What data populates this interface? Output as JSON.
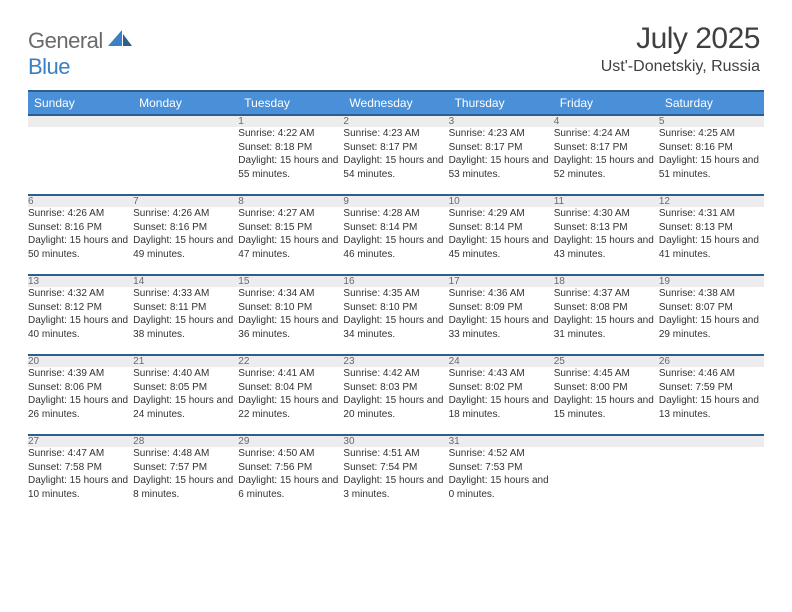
{
  "logo": {
    "word1": "General",
    "word2": "Blue"
  },
  "title": "July 2025",
  "location": "Ust'-Donetskiy, Russia",
  "colors": {
    "header_bg": "#4a90d9",
    "header_border": "#2c5f8d",
    "daynum_bg": "#ededed",
    "text": "#333333",
    "logo_gray": "#6a6a6a",
    "logo_blue": "#3b7fc4"
  },
  "day_headers": [
    "Sunday",
    "Monday",
    "Tuesday",
    "Wednesday",
    "Thursday",
    "Friday",
    "Saturday"
  ],
  "weeks": [
    [
      null,
      null,
      {
        "n": "1",
        "sunrise": "4:22 AM",
        "sunset": "8:18 PM",
        "daylight": "15 hours and 55 minutes."
      },
      {
        "n": "2",
        "sunrise": "4:23 AM",
        "sunset": "8:17 PM",
        "daylight": "15 hours and 54 minutes."
      },
      {
        "n": "3",
        "sunrise": "4:23 AM",
        "sunset": "8:17 PM",
        "daylight": "15 hours and 53 minutes."
      },
      {
        "n": "4",
        "sunrise": "4:24 AM",
        "sunset": "8:17 PM",
        "daylight": "15 hours and 52 minutes."
      },
      {
        "n": "5",
        "sunrise": "4:25 AM",
        "sunset": "8:16 PM",
        "daylight": "15 hours and 51 minutes."
      }
    ],
    [
      {
        "n": "6",
        "sunrise": "4:26 AM",
        "sunset": "8:16 PM",
        "daylight": "15 hours and 50 minutes."
      },
      {
        "n": "7",
        "sunrise": "4:26 AM",
        "sunset": "8:16 PM",
        "daylight": "15 hours and 49 minutes."
      },
      {
        "n": "8",
        "sunrise": "4:27 AM",
        "sunset": "8:15 PM",
        "daylight": "15 hours and 47 minutes."
      },
      {
        "n": "9",
        "sunrise": "4:28 AM",
        "sunset": "8:14 PM",
        "daylight": "15 hours and 46 minutes."
      },
      {
        "n": "10",
        "sunrise": "4:29 AM",
        "sunset": "8:14 PM",
        "daylight": "15 hours and 45 minutes."
      },
      {
        "n": "11",
        "sunrise": "4:30 AM",
        "sunset": "8:13 PM",
        "daylight": "15 hours and 43 minutes."
      },
      {
        "n": "12",
        "sunrise": "4:31 AM",
        "sunset": "8:13 PM",
        "daylight": "15 hours and 41 minutes."
      }
    ],
    [
      {
        "n": "13",
        "sunrise": "4:32 AM",
        "sunset": "8:12 PM",
        "daylight": "15 hours and 40 minutes."
      },
      {
        "n": "14",
        "sunrise": "4:33 AM",
        "sunset": "8:11 PM",
        "daylight": "15 hours and 38 minutes."
      },
      {
        "n": "15",
        "sunrise": "4:34 AM",
        "sunset": "8:10 PM",
        "daylight": "15 hours and 36 minutes."
      },
      {
        "n": "16",
        "sunrise": "4:35 AM",
        "sunset": "8:10 PM",
        "daylight": "15 hours and 34 minutes."
      },
      {
        "n": "17",
        "sunrise": "4:36 AM",
        "sunset": "8:09 PM",
        "daylight": "15 hours and 33 minutes."
      },
      {
        "n": "18",
        "sunrise": "4:37 AM",
        "sunset": "8:08 PM",
        "daylight": "15 hours and 31 minutes."
      },
      {
        "n": "19",
        "sunrise": "4:38 AM",
        "sunset": "8:07 PM",
        "daylight": "15 hours and 29 minutes."
      }
    ],
    [
      {
        "n": "20",
        "sunrise": "4:39 AM",
        "sunset": "8:06 PM",
        "daylight": "15 hours and 26 minutes."
      },
      {
        "n": "21",
        "sunrise": "4:40 AM",
        "sunset": "8:05 PM",
        "daylight": "15 hours and 24 minutes."
      },
      {
        "n": "22",
        "sunrise": "4:41 AM",
        "sunset": "8:04 PM",
        "daylight": "15 hours and 22 minutes."
      },
      {
        "n": "23",
        "sunrise": "4:42 AM",
        "sunset": "8:03 PM",
        "daylight": "15 hours and 20 minutes."
      },
      {
        "n": "24",
        "sunrise": "4:43 AM",
        "sunset": "8:02 PM",
        "daylight": "15 hours and 18 minutes."
      },
      {
        "n": "25",
        "sunrise": "4:45 AM",
        "sunset": "8:00 PM",
        "daylight": "15 hours and 15 minutes."
      },
      {
        "n": "26",
        "sunrise": "4:46 AM",
        "sunset": "7:59 PM",
        "daylight": "15 hours and 13 minutes."
      }
    ],
    [
      {
        "n": "27",
        "sunrise": "4:47 AM",
        "sunset": "7:58 PM",
        "daylight": "15 hours and 10 minutes."
      },
      {
        "n": "28",
        "sunrise": "4:48 AM",
        "sunset": "7:57 PM",
        "daylight": "15 hours and 8 minutes."
      },
      {
        "n": "29",
        "sunrise": "4:50 AM",
        "sunset": "7:56 PM",
        "daylight": "15 hours and 6 minutes."
      },
      {
        "n": "30",
        "sunrise": "4:51 AM",
        "sunset": "7:54 PM",
        "daylight": "15 hours and 3 minutes."
      },
      {
        "n": "31",
        "sunrise": "4:52 AM",
        "sunset": "7:53 PM",
        "daylight": "15 hours and 0 minutes."
      },
      null,
      null
    ]
  ],
  "labels": {
    "sunrise": "Sunrise:",
    "sunset": "Sunset:",
    "daylight": "Daylight:"
  }
}
